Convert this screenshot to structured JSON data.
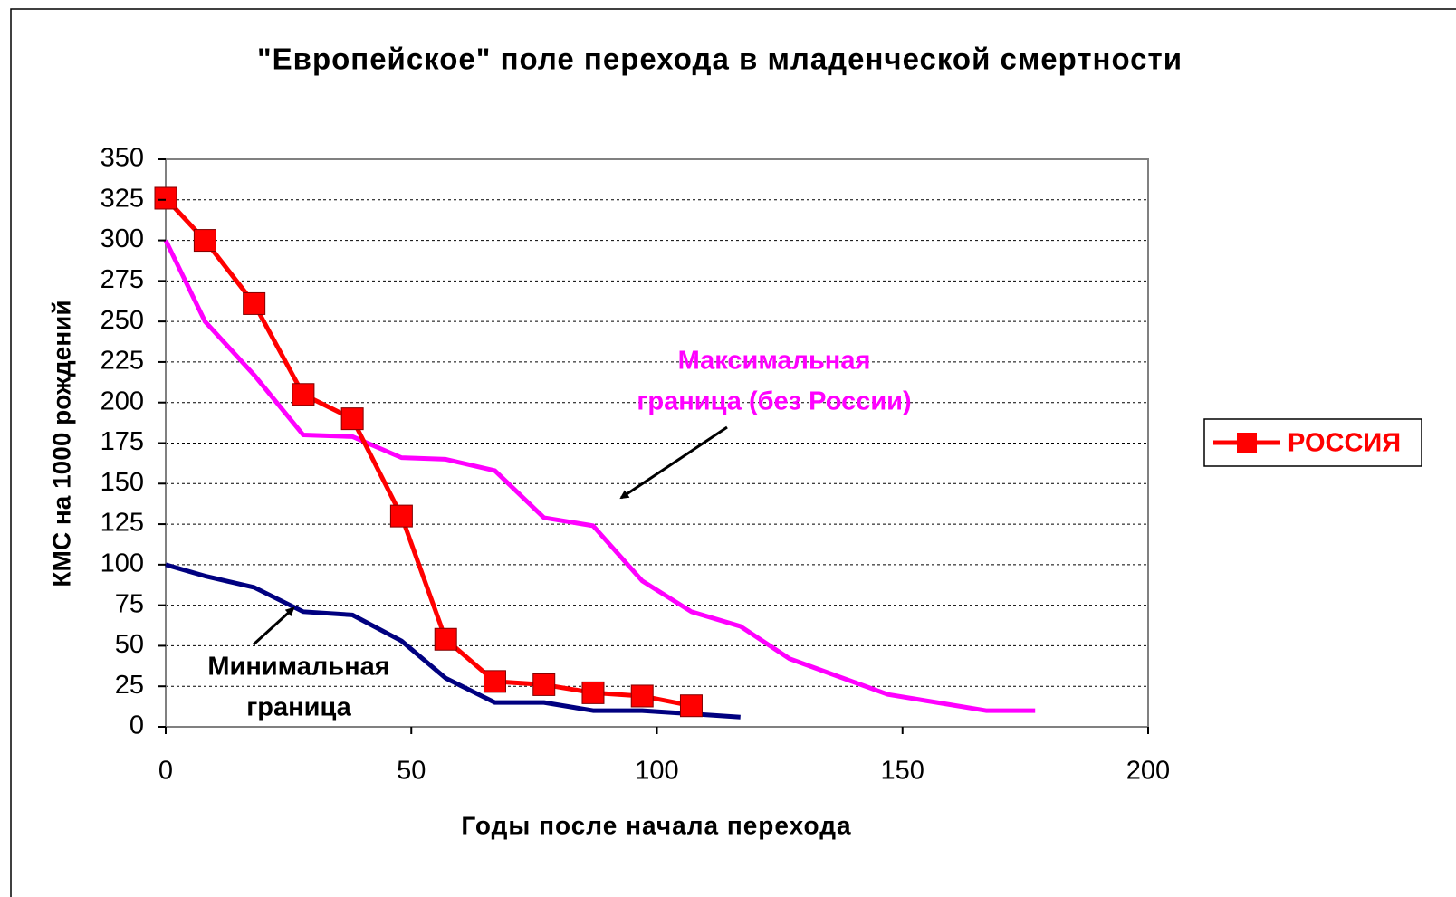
{
  "chart_data": {
    "type": "line",
    "title": "\"Европейское\" поле перехода в младенческой смертности",
    "x_label": "Годы после начала перехода",
    "y_label": "КМС на 1000 рождений",
    "xlim": [
      0,
      200
    ],
    "xticks": [
      0,
      50,
      100,
      150,
      200
    ],
    "ylim": [
      0,
      350
    ],
    "yticks": [
      0,
      25,
      50,
      75,
      100,
      125,
      150,
      175,
      200,
      225,
      250,
      275,
      300,
      325,
      350
    ],
    "grid": true,
    "legend": "right",
    "series": [
      {
        "name": "РОССИЯ",
        "color": "#ff0000",
        "marker": "square",
        "x": [
          0,
          8,
          18,
          28,
          38,
          48,
          57,
          67,
          77,
          87,
          97,
          107
        ],
        "values": [
          326,
          300,
          261,
          205,
          190,
          130,
          54,
          28,
          26,
          21,
          19,
          13
        ]
      },
      {
        "color": "#ff00ff",
        "x": [
          0,
          8,
          18,
          28,
          38,
          48,
          57,
          67,
          77,
          87,
          97,
          107,
          117,
          127,
          137,
          147,
          157,
          167,
          177
        ],
        "values": [
          300,
          250,
          217,
          180,
          179,
          166,
          165,
          158,
          129,
          124,
          90,
          71,
          62,
          42,
          31,
          20,
          15,
          10,
          10
        ]
      },
      {
        "color": "#000080",
        "x": [
          0,
          8,
          18,
          28,
          38,
          48,
          57,
          67,
          77,
          87,
          97,
          107,
          117
        ],
        "values": [
          100,
          93,
          86,
          71,
          69,
          53,
          30,
          15,
          15,
          10,
          10,
          8,
          6
        ]
      }
    ],
    "annotations": [
      {
        "lines": [
          "Максимальная",
          "граница (без России)"
        ],
        "color": "#ff00ff"
      },
      {
        "lines": [
          "Минимальная",
          "граница"
        ],
        "color": "#000000"
      }
    ]
  }
}
